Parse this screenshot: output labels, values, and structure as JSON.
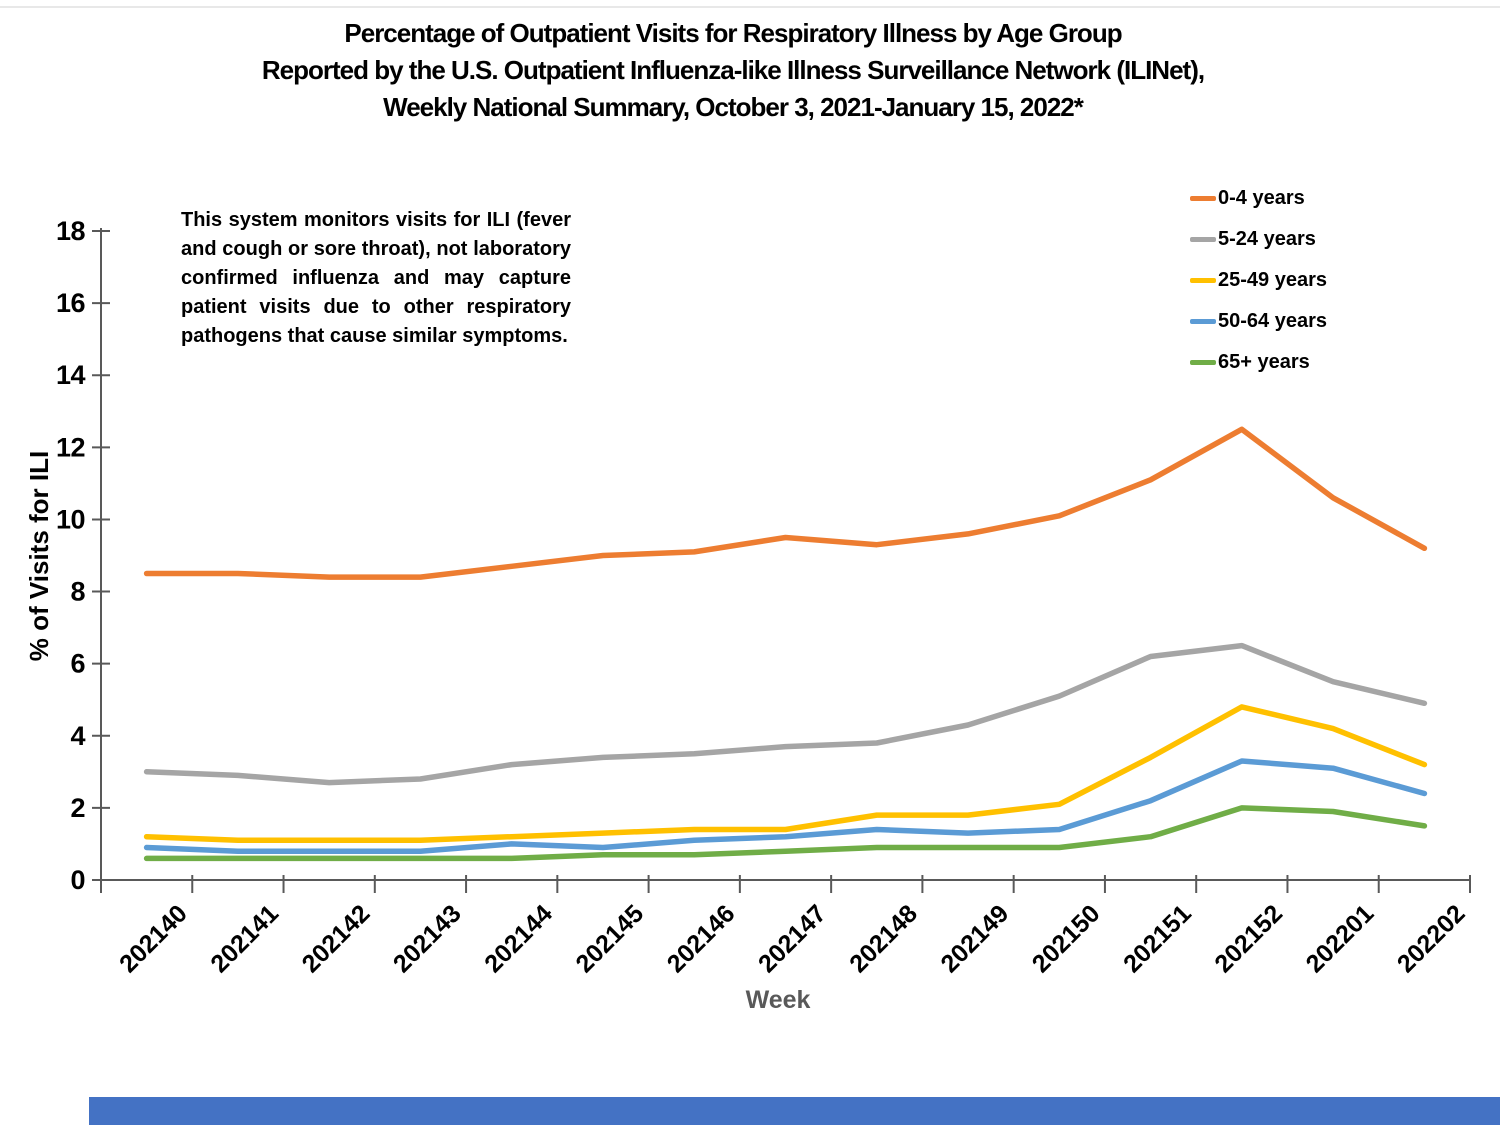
{
  "title": {
    "line1": "Percentage of Outpatient Visits for Respiratory Illness by Age Group",
    "line2": "Reported by the U.S. Outpatient Influenza-like Illness Surveillance Network (ILINet),",
    "line3": "Weekly National Summary, October 3, 2021-January 15, 2022*"
  },
  "annotation": "This system monitors visits for ILI (fever and cough or sore throat), not laboratory confirmed influenza and may capture patient visits due to other respiratory pathogens that cause similar symptoms.",
  "colors": {
    "axis": "#595959",
    "muted_text": "#595959",
    "footer_band": "#4472C4",
    "background": "#FFFFFF"
  },
  "chart_data": {
    "type": "line",
    "title": "Percentage of Outpatient Visits for Respiratory Illness by Age Group, ILINet Weekly National Summary",
    "xlabel": "Week",
    "ylabel": "% of Visits for ILI",
    "ylim": [
      0,
      18
    ],
    "ytick_step": 2,
    "grid": false,
    "legend_position": "top-right",
    "categories": [
      "202140",
      "202141",
      "202142",
      "202143",
      "202144",
      "202145",
      "202146",
      "202147",
      "202148",
      "202149",
      "202150",
      "202151",
      "202152",
      "202201",
      "202202"
    ],
    "series": [
      {
        "name": "0-4 years",
        "color": "#ED7D31",
        "values": [
          8.5,
          8.5,
          8.4,
          8.4,
          8.7,
          9.0,
          9.1,
          9.5,
          9.3,
          9.6,
          10.1,
          11.1,
          12.5,
          10.6,
          9.2
        ]
      },
      {
        "name": "5-24 years",
        "color": "#A5A5A5",
        "values": [
          3.0,
          2.9,
          2.7,
          2.8,
          3.2,
          3.4,
          3.5,
          3.7,
          3.8,
          4.3,
          5.1,
          6.2,
          6.5,
          5.5,
          4.9
        ]
      },
      {
        "name": "25-49 years",
        "color": "#FFC000",
        "values": [
          1.2,
          1.1,
          1.1,
          1.1,
          1.2,
          1.3,
          1.4,
          1.4,
          1.8,
          1.8,
          2.1,
          3.4,
          4.8,
          4.2,
          3.2
        ]
      },
      {
        "name": "50-64 years",
        "color": "#5B9BD5",
        "values": [
          0.9,
          0.8,
          0.8,
          0.8,
          1.0,
          0.9,
          1.1,
          1.2,
          1.4,
          1.3,
          1.4,
          2.2,
          3.3,
          3.1,
          2.4
        ]
      },
      {
        "name": "65+ years",
        "color": "#70AD47",
        "values": [
          0.6,
          0.6,
          0.6,
          0.6,
          0.6,
          0.7,
          0.7,
          0.8,
          0.9,
          0.9,
          0.9,
          1.2,
          2.0,
          1.9,
          1.5
        ]
      }
    ]
  }
}
